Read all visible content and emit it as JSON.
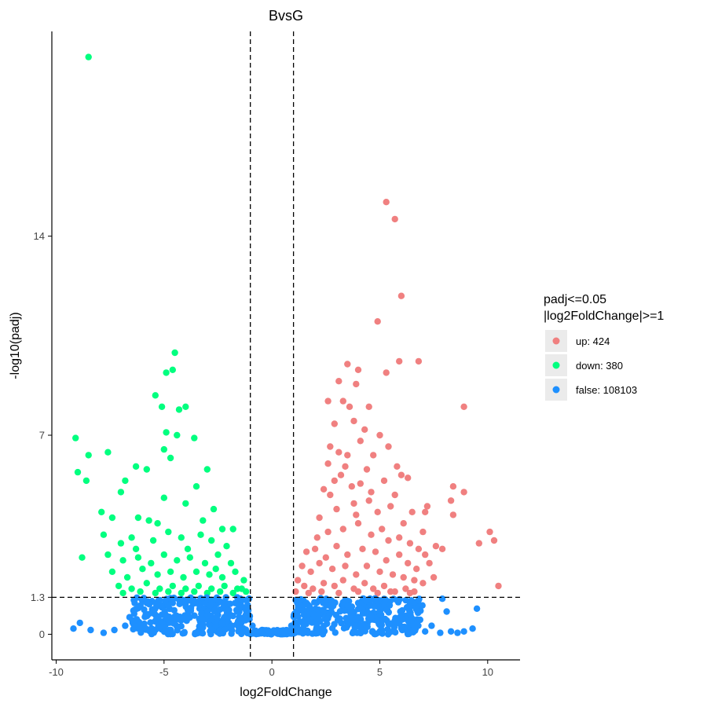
{
  "chart_data": {
    "type": "scatter",
    "title": "BvsG",
    "xlabel": "log2FoldChange",
    "ylabel": "-log10(padj)",
    "xlim": [
      -10.2,
      11.5
    ],
    "ylim": [
      -0.9,
      21.2
    ],
    "xticks": [
      -10,
      -5,
      0,
      5,
      10
    ],
    "xtick_labels": [
      "-10",
      "-5",
      "0",
      "5",
      "10"
    ],
    "yticks": [
      0,
      1.3,
      7,
      14
    ],
    "ytick_labels": [
      "0",
      "1.3",
      "7",
      "14"
    ],
    "grid": false,
    "thresholds": {
      "x": [
        -1,
        1
      ],
      "y": 1.3
    },
    "legend": {
      "position": "right",
      "title_lines": [
        "padj<=0.05",
        "|log2FoldChange|>=1"
      ],
      "entries": [
        {
          "key": "up",
          "label": "up: 424",
          "color": "#F08080"
        },
        {
          "key": "down",
          "label": "down: 380",
          "color": "#00FF7F"
        },
        {
          "key": "false",
          "label": "false: 108103",
          "color": "#1E90FF"
        }
      ]
    },
    "series": [
      {
        "name": "up: 424",
        "color": "#F08080",
        "points": [
          [
            5.3,
            15.2
          ],
          [
            5.7,
            14.6
          ],
          [
            6.0,
            11.9
          ],
          [
            4.9,
            11.0
          ],
          [
            6.8,
            9.6
          ],
          [
            5.9,
            9.6
          ],
          [
            3.5,
            9.5
          ],
          [
            4.0,
            9.3
          ],
          [
            5.3,
            9.2
          ],
          [
            3.1,
            8.9
          ],
          [
            8.9,
            8.0
          ],
          [
            3.9,
            8.8
          ],
          [
            2.6,
            8.2
          ],
          [
            3.3,
            8.2
          ],
          [
            3.6,
            8.0
          ],
          [
            4.5,
            8.0
          ],
          [
            2.9,
            7.4
          ],
          [
            3.8,
            7.5
          ],
          [
            4.3,
            7.2
          ],
          [
            5.0,
            7.0
          ],
          [
            2.7,
            6.6
          ],
          [
            3.1,
            6.4
          ],
          [
            4.1,
            6.8
          ],
          [
            4.7,
            6.3
          ],
          [
            5.4,
            6.6
          ],
          [
            2.6,
            6.0
          ],
          [
            3.4,
            5.9
          ],
          [
            4.4,
            5.8
          ],
          [
            5.8,
            5.9
          ],
          [
            6.0,
            5.6
          ],
          [
            2.9,
            5.4
          ],
          [
            3.7,
            5.2
          ],
          [
            4.6,
            5.0
          ],
          [
            5.2,
            5.4
          ],
          [
            6.3,
            5.5
          ],
          [
            8.4,
            5.2
          ],
          [
            8.9,
            5.0
          ],
          [
            7.2,
            4.5
          ],
          [
            7.1,
            4.3
          ],
          [
            8.3,
            4.7
          ],
          [
            8.4,
            4.2
          ],
          [
            10.1,
            3.6
          ],
          [
            9.6,
            3.2
          ],
          [
            10.3,
            3.3
          ],
          [
            10.5,
            1.7
          ],
          [
            2.2,
            4.1
          ],
          [
            3.0,
            4.4
          ],
          [
            3.8,
            4.6
          ],
          [
            4.9,
            4.3
          ],
          [
            5.5,
            4.5
          ],
          [
            6.5,
            4.3
          ],
          [
            7.0,
            3.6
          ],
          [
            7.6,
            3.1
          ],
          [
            7.1,
            2.8
          ],
          [
            7.9,
            3.0
          ],
          [
            2.1,
            3.4
          ],
          [
            2.6,
            3.6
          ],
          [
            3.3,
            3.7
          ],
          [
            4.0,
            3.9
          ],
          [
            4.6,
            3.5
          ],
          [
            5.1,
            3.7
          ],
          [
            5.9,
            3.4
          ],
          [
            6.4,
            3.2
          ],
          [
            6.8,
            3.0
          ],
          [
            1.6,
            2.9
          ],
          [
            2.0,
            3.0
          ],
          [
            2.5,
            2.7
          ],
          [
            3.0,
            3.1
          ],
          [
            3.5,
            2.8
          ],
          [
            4.2,
            3.0
          ],
          [
            4.8,
            2.9
          ],
          [
            5.3,
            2.6
          ],
          [
            5.9,
            2.8
          ],
          [
            6.3,
            2.5
          ],
          [
            6.7,
            2.3
          ],
          [
            7.3,
            2.5
          ],
          [
            7.5,
            2.0
          ],
          [
            1.4,
            2.4
          ],
          [
            1.8,
            2.2
          ],
          [
            2.2,
            2.5
          ],
          [
            2.8,
            2.3
          ],
          [
            3.4,
            2.4
          ],
          [
            3.9,
            2.1
          ],
          [
            4.4,
            2.4
          ],
          [
            5.0,
            2.2
          ],
          [
            5.6,
            2.1
          ],
          [
            6.1,
            2.0
          ],
          [
            6.6,
            1.9
          ],
          [
            7.0,
            1.8
          ],
          [
            1.2,
            1.9
          ],
          [
            1.5,
            1.7
          ],
          [
            1.9,
            1.6
          ],
          [
            2.4,
            1.8
          ],
          [
            2.9,
            1.7
          ],
          [
            3.3,
            1.9
          ],
          [
            3.8,
            1.6
          ],
          [
            4.3,
            1.8
          ],
          [
            4.7,
            1.6
          ],
          [
            5.2,
            1.7
          ],
          [
            5.7,
            1.5
          ],
          [
            6.2,
            1.6
          ],
          [
            6.6,
            1.5
          ],
          [
            1.1,
            1.5
          ],
          [
            1.7,
            1.45
          ],
          [
            2.3,
            1.5
          ],
          [
            3.1,
            1.45
          ],
          [
            4.0,
            1.5
          ],
          [
            4.9,
            1.45
          ],
          [
            5.5,
            1.5
          ],
          [
            6.4,
            1.45
          ],
          [
            2.7,
            4.9
          ],
          [
            3.2,
            5.6
          ],
          [
            4.1,
            5.3
          ],
          [
            3.5,
            6.3
          ],
          [
            2.4,
            5.1
          ],
          [
            5.7,
            4.9
          ],
          [
            6.1,
            3.9
          ],
          [
            5.4,
            3.3
          ],
          [
            4.5,
            4.7
          ],
          [
            3.9,
            4.2
          ]
        ]
      },
      {
        "name": "down: 380",
        "color": "#00FF7F",
        "points": [
          [
            -8.5,
            20.3
          ],
          [
            -4.5,
            9.9
          ],
          [
            -4.6,
            9.3
          ],
          [
            -4.9,
            9.2
          ],
          [
            -5.4,
            8.4
          ],
          [
            -5.1,
            8.0
          ],
          [
            -4.0,
            8.0
          ],
          [
            -4.3,
            7.9
          ],
          [
            -9.1,
            6.9
          ],
          [
            -8.5,
            6.3
          ],
          [
            -7.6,
            6.4
          ],
          [
            -9.0,
            5.7
          ],
          [
            -8.6,
            5.4
          ],
          [
            -4.9,
            7.1
          ],
          [
            -4.4,
            7.0
          ],
          [
            -3.6,
            6.9
          ],
          [
            -5.0,
            6.5
          ],
          [
            -4.7,
            6.2
          ],
          [
            -6.3,
            5.9
          ],
          [
            -6.8,
            5.4
          ],
          [
            -7.0,
            5.0
          ],
          [
            -5.8,
            5.8
          ],
          [
            -3.0,
            5.8
          ],
          [
            -3.5,
            5.2
          ],
          [
            -5.0,
            4.8
          ],
          [
            -4.0,
            4.6
          ],
          [
            -7.9,
            4.3
          ],
          [
            -7.4,
            4.1
          ],
          [
            -6.2,
            4.1
          ],
          [
            -5.7,
            4.0
          ],
          [
            -2.7,
            4.4
          ],
          [
            -2.3,
            3.7
          ],
          [
            -1.8,
            3.7
          ],
          [
            -8.8,
            2.7
          ],
          [
            -7.8,
            3.5
          ],
          [
            -7.0,
            3.2
          ],
          [
            -6.5,
            3.4
          ],
          [
            -5.5,
            3.3
          ],
          [
            -4.8,
            3.6
          ],
          [
            -4.2,
            3.4
          ],
          [
            -3.3,
            3.5
          ],
          [
            -2.8,
            3.3
          ],
          [
            -2.1,
            3.1
          ],
          [
            -7.6,
            2.8
          ],
          [
            -6.9,
            2.6
          ],
          [
            -6.2,
            2.7
          ],
          [
            -5.6,
            2.5
          ],
          [
            -5.0,
            2.8
          ],
          [
            -4.4,
            2.6
          ],
          [
            -3.8,
            2.7
          ],
          [
            -3.1,
            2.5
          ],
          [
            -2.5,
            2.8
          ],
          [
            -1.9,
            2.5
          ],
          [
            -7.4,
            2.2
          ],
          [
            -6.7,
            2.0
          ],
          [
            -6.0,
            2.3
          ],
          [
            -5.3,
            2.1
          ],
          [
            -4.7,
            2.2
          ],
          [
            -4.1,
            2.0
          ],
          [
            -3.5,
            2.2
          ],
          [
            -2.9,
            2.1
          ],
          [
            -2.3,
            2.0
          ],
          [
            -1.7,
            2.2
          ],
          [
            -1.3,
            1.9
          ],
          [
            -7.1,
            1.7
          ],
          [
            -6.5,
            1.6
          ],
          [
            -5.8,
            1.8
          ],
          [
            -5.2,
            1.6
          ],
          [
            -4.6,
            1.7
          ],
          [
            -4.0,
            1.6
          ],
          [
            -3.4,
            1.7
          ],
          [
            -2.8,
            1.6
          ],
          [
            -2.2,
            1.7
          ],
          [
            -1.6,
            1.6
          ],
          [
            -1.2,
            1.5
          ],
          [
            -6.9,
            1.45
          ],
          [
            -6.1,
            1.5
          ],
          [
            -5.4,
            1.45
          ],
          [
            -4.8,
            1.5
          ],
          [
            -4.2,
            1.45
          ],
          [
            -3.6,
            1.5
          ],
          [
            -3.0,
            1.45
          ],
          [
            -2.4,
            1.5
          ],
          [
            -1.8,
            1.45
          ],
          [
            -1.4,
            1.6
          ],
          [
            -6.3,
            3.0
          ],
          [
            -3.9,
            3.0
          ],
          [
            -3.2,
            4.0
          ],
          [
            -5.3,
            3.9
          ],
          [
            -2.6,
            2.3
          ]
        ]
      },
      {
        "name": "false: 108103",
        "color": "#1E90FF",
        "points": [
          [
            -9.2,
            0.2
          ],
          [
            -8.9,
            0.4
          ],
          [
            -8.4,
            0.15
          ],
          [
            -7.8,
            0.05
          ],
          [
            -7.3,
            0.15
          ],
          [
            -6.6,
            0.6
          ],
          [
            -6.8,
            0.3
          ],
          [
            -6.4,
            1.2
          ],
          [
            -5.8,
            1.1
          ],
          [
            -5.2,
            1.2
          ],
          [
            -4.6,
            1.1
          ],
          [
            -4.0,
            1.2
          ],
          [
            -3.4,
            1.1
          ],
          [
            -2.8,
            1.2
          ],
          [
            -2.2,
            1.1
          ],
          [
            -1.6,
            1.15
          ],
          [
            -1.2,
            1.2
          ],
          [
            1.1,
            1.2
          ],
          [
            1.6,
            1.1
          ],
          [
            2.2,
            1.2
          ],
          [
            2.8,
            1.1
          ],
          [
            3.4,
            1.2
          ],
          [
            4.0,
            1.1
          ],
          [
            4.6,
            1.2
          ],
          [
            5.2,
            1.1
          ],
          [
            5.8,
            1.2
          ],
          [
            6.4,
            1.1
          ],
          [
            6.8,
            1.2
          ],
          [
            7.9,
            1.25
          ],
          [
            8.1,
            0.8
          ],
          [
            9.5,
            0.9
          ],
          [
            9.3,
            0.2
          ],
          [
            8.9,
            0.1
          ],
          [
            8.6,
            0.05
          ],
          [
            8.3,
            0.1
          ],
          [
            7.8,
            0.05
          ],
          [
            7.4,
            0.3
          ],
          [
            7.1,
            0.1
          ],
          [
            0.0,
            0.05
          ],
          [
            -0.5,
            0.1
          ],
          [
            0.5,
            0.1
          ],
          [
            -0.9,
            0.3
          ],
          [
            0.9,
            0.3
          ]
        ],
        "bands": [
          {
            "x_range": [
              -6.5,
              -1.0
            ],
            "y_range": [
              0.0,
              1.3
            ]
          },
          {
            "x_range": [
              1.0,
              7.0
            ],
            "y_range": [
              0.0,
              1.3
            ]
          },
          {
            "x_range": [
              -1.0,
              1.0
            ],
            "y_range": [
              0.0,
              0.15
            ]
          }
        ]
      }
    ]
  }
}
